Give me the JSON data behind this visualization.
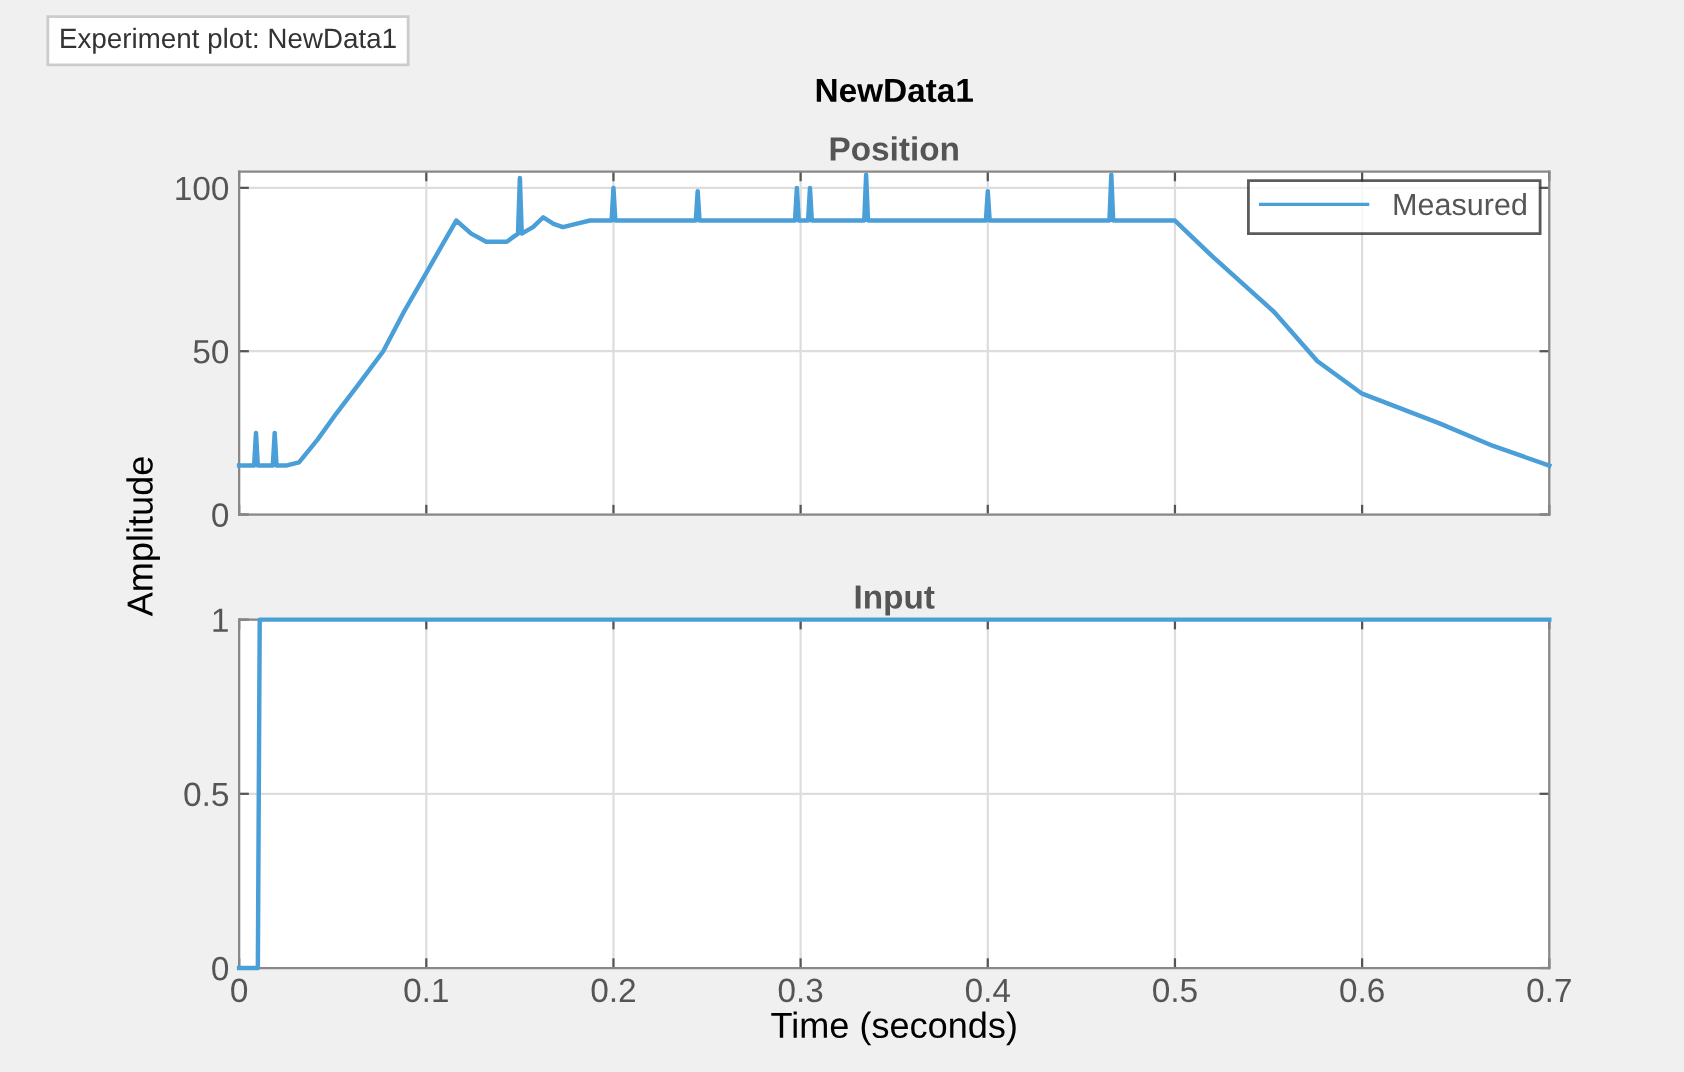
{
  "chart_data": [
    {
      "type": "line",
      "title": "NewData1",
      "subtitle": "Position",
      "ylabel": "Amplitude",
      "annotations": [
        "Experiment plot: NewData1"
      ],
      "xlim": [
        0,
        0.7
      ],
      "xticks": [
        0,
        0.1,
        0.2,
        0.3,
        0.4,
        0.5,
        0.6,
        0.7
      ],
      "ylim": [
        0,
        105
      ],
      "yticks": [
        0,
        50,
        100
      ],
      "tick_labels": "y",
      "grid": true,
      "legend": "top right",
      "series": [
        {
          "name": "Measured",
          "color": "#4a9fd8",
          "x": [
            0,
            0.008,
            0.009,
            0.01,
            0.018,
            0.019,
            0.02,
            0.025,
            0.032,
            0.042,
            0.052,
            0.064,
            0.077,
            0.088,
            0.1,
            0.108,
            0.116,
            0.124,
            0.132,
            0.143,
            0.149,
            0.15,
            0.151,
            0.157,
            0.1625,
            0.168,
            0.173,
            0.18,
            0.1875,
            0.199,
            0.2,
            0.201,
            0.244,
            0.245,
            0.246,
            0.297,
            0.298,
            0.299,
            0.304,
            0.305,
            0.306,
            0.334,
            0.335,
            0.336,
            0.399,
            0.4,
            0.401,
            0.465,
            0.466,
            0.467,
            0.5,
            0.52,
            0.553,
            0.576,
            0.6,
            0.641,
            0.67,
            0.7
          ],
          "values": [
            15,
            15,
            25,
            15,
            15,
            25,
            15,
            15,
            16,
            23,
            31,
            40,
            50,
            62,
            74,
            82,
            90,
            86,
            83.5,
            83.5,
            86,
            103,
            86,
            88,
            91,
            89,
            88,
            89,
            90,
            90,
            100,
            90,
            90,
            99,
            90,
            90,
            100,
            90,
            90,
            100,
            90,
            90,
            104,
            90,
            90,
            99,
            90,
            90,
            104,
            90,
            90,
            79,
            62,
            47,
            37,
            28,
            21,
            15
          ]
        }
      ]
    },
    {
      "type": "line",
      "title": "Input",
      "xlabel": "Time (seconds)",
      "xlim": [
        0,
        0.7
      ],
      "xticks": [
        0,
        0.1,
        0.2,
        0.3,
        0.4,
        0.5,
        0.6,
        0.7
      ],
      "ylim": [
        0,
        1
      ],
      "yticks": [
        0,
        0.5,
        1
      ],
      "grid": true,
      "series": [
        {
          "color": "#4a9fd8",
          "x": [
            0,
            0.01,
            0.011,
            0.7
          ],
          "values": [
            0,
            0,
            1,
            1
          ]
        }
      ]
    }
  ]
}
